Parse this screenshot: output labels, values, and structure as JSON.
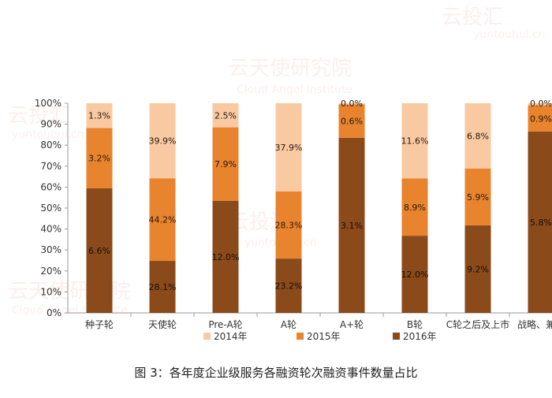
{
  "caption": "图 3：各年度企业级服务各融资轮次融资事件数量占比",
  "watermarks": [
    "云天使研究院",
    "Cloud Angel Institute",
    "云投汇",
    "yuntouhui.cn"
  ],
  "colors": {
    "2014年": "#f9c9a2",
    "2015年": "#e8832e",
    "2016年": "#8b4a1a"
  },
  "chart_data": {
    "type": "bar",
    "stacked": true,
    "percent": true,
    "categories": [
      "种子轮",
      "天使轮",
      "Pre-A轮",
      "A轮",
      "A+轮",
      "B轮",
      "C轮之后及上市",
      "战略、兼并"
    ],
    "series": [
      {
        "name": "2016年",
        "values": [
          59.5,
          24.8,
          53.5,
          25.9,
          83.5,
          36.8,
          41.8,
          86.5
        ],
        "labels": [
          "6.6%",
          "28.1%",
          "12.0%",
          "23.2%",
          "3.1%",
          "12.0%",
          "9.2%",
          "5.8%"
        ]
      },
      {
        "name": "2015年",
        "values": [
          28.7,
          39.4,
          35.0,
          32.0,
          16.0,
          27.3,
          27.1,
          12.5
        ],
        "labels": [
          "3.2%",
          "44.2%",
          "7.9%",
          "28.3%",
          "0.6%",
          "8.9%",
          "5.9%",
          "0.9%"
        ]
      },
      {
        "name": "2014年",
        "values": [
          11.8,
          35.8,
          11.5,
          42.1,
          0.5,
          35.9,
          31.1,
          1.0
        ],
        "labels": [
          "1.3%",
          "39.9%",
          "2.5%",
          "37.9%",
          "0.0%",
          "11.6%",
          "6.8%",
          "0.0%"
        ]
      }
    ],
    "ylim": [
      0,
      100
    ],
    "yticks": [
      "0%",
      "10%",
      "20%",
      "30%",
      "40%",
      "50%",
      "60%",
      "70%",
      "80%",
      "90%",
      "100%"
    ],
    "legend": [
      "2014年",
      "2015年",
      "2016年"
    ],
    "legend_position": "bottom",
    "grid": false
  }
}
